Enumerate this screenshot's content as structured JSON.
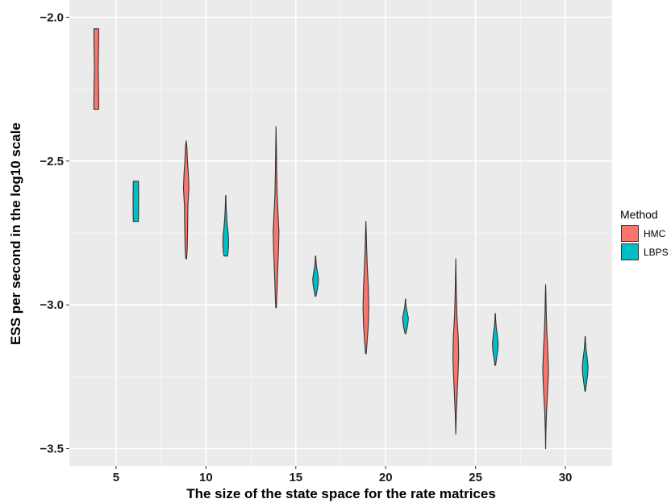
{
  "chart_data": {
    "type": "violin",
    "xlabel": "The size of the state space for the rate matrices",
    "ylabel": "ESS per second in the log10 scale",
    "xlim": [
      2.4,
      32.6
    ],
    "ylim": [
      -3.56,
      -1.94
    ],
    "x_ticks": [
      5,
      10,
      15,
      20,
      25,
      30
    ],
    "y_ticks": [
      -3.5,
      -3.0,
      -2.5,
      -2.0
    ],
    "y_tick_labels": [
      "−3.5",
      "−3.0",
      "−2.5",
      "−2.0"
    ],
    "grid": true,
    "legend_position": "right",
    "legend": {
      "title": "Method",
      "items": [
        {
          "label": "HMC",
          "color": "#F8766D"
        },
        {
          "label": "LBPS",
          "color": "#00BFC4"
        }
      ]
    },
    "series": [
      {
        "name": "HMC",
        "color": "#F8766D",
        "violins": [
          {
            "x": 3.9,
            "ymin": -2.32,
            "ymax": -2.04,
            "profile": [
              [
                0,
                0.82
              ],
              [
                0.04,
                0.86
              ],
              [
                0.3,
                0.78
              ],
              [
                0.5,
                0.65
              ],
              [
                0.7,
                0.75
              ],
              [
                0.96,
                0.84
              ],
              [
                1,
                0.8
              ]
            ]
          },
          {
            "x": 8.9,
            "ymin": -2.84,
            "ymax": -2.43,
            "profile": [
              [
                0,
                0.15
              ],
              [
                0.08,
                0.35
              ],
              [
                0.25,
                0.5
              ],
              [
                0.45,
                0.6
              ],
              [
                0.6,
                0.95
              ],
              [
                0.72,
                0.75
              ],
              [
                0.85,
                0.4
              ],
              [
                0.95,
                0.25
              ],
              [
                1,
                0
              ]
            ]
          },
          {
            "x": 13.9,
            "ymin": -3.01,
            "ymax": -2.38,
            "profile": [
              [
                0,
                0.1
              ],
              [
                0.08,
                0.3
              ],
              [
                0.2,
                0.55
              ],
              [
                0.32,
                0.85
              ],
              [
                0.42,
                1
              ],
              [
                0.52,
                0.7
              ],
              [
                0.62,
                0.4
              ],
              [
                0.75,
                0.22
              ],
              [
                0.88,
                0.12
              ],
              [
                1,
                0
              ]
            ]
          },
          {
            "x": 18.9,
            "ymin": -3.17,
            "ymax": -2.71,
            "profile": [
              [
                0,
                0.1
              ],
              [
                0.1,
                0.45
              ],
              [
                0.22,
                0.85
              ],
              [
                0.35,
                1
              ],
              [
                0.5,
                0.85
              ],
              [
                0.65,
                0.5
              ],
              [
                0.8,
                0.25
              ],
              [
                0.92,
                0.12
              ],
              [
                1,
                0
              ]
            ]
          },
          {
            "x": 23.9,
            "ymin": -3.45,
            "ymax": -2.84,
            "profile": [
              [
                0,
                0
              ],
              [
                0.1,
                0.15
              ],
              [
                0.22,
                0.45
              ],
              [
                0.35,
                0.8
              ],
              [
                0.45,
                1
              ],
              [
                0.55,
                0.85
              ],
              [
                0.68,
                0.4
              ],
              [
                0.82,
                0.18
              ],
              [
                0.92,
                0.08
              ],
              [
                1,
                0
              ]
            ]
          },
          {
            "x": 28.9,
            "ymin": -3.5,
            "ymax": -2.93,
            "profile": [
              [
                0,
                0
              ],
              [
                0.1,
                0.1
              ],
              [
                0.22,
                0.3
              ],
              [
                0.35,
                0.7
              ],
              [
                0.48,
                1
              ],
              [
                0.6,
                0.75
              ],
              [
                0.72,
                0.4
              ],
              [
                0.85,
                0.18
              ],
              [
                0.95,
                0.08
              ],
              [
                1,
                0
              ]
            ]
          }
        ]
      },
      {
        "name": "LBPS",
        "color": "#00BFC4",
        "violins": [
          {
            "x": 6.1,
            "ymin": -2.71,
            "ymax": -2.57,
            "profile": [
              [
                0,
                0.88
              ],
              [
                0.05,
                0.9
              ],
              [
                0.3,
                0.96
              ],
              [
                0.5,
                0.94
              ],
              [
                0.7,
                0.96
              ],
              [
                0.95,
                0.92
              ],
              [
                1,
                0.9
              ]
            ]
          },
          {
            "x": 11.1,
            "ymin": -2.83,
            "ymax": -2.62,
            "profile": [
              [
                0,
                0.6
              ],
              [
                0.05,
                0.8
              ],
              [
                0.2,
                1
              ],
              [
                0.35,
                0.9
              ],
              [
                0.5,
                0.55
              ],
              [
                0.62,
                0.35
              ],
              [
                0.75,
                0.2
              ],
              [
                0.88,
                0.1
              ],
              [
                1,
                0.05
              ]
            ]
          },
          {
            "x": 16.1,
            "ymin": -2.97,
            "ymax": -2.83,
            "profile": [
              [
                0,
                0.12
              ],
              [
                0.12,
                0.45
              ],
              [
                0.28,
                0.85
              ],
              [
                0.42,
                1
              ],
              [
                0.58,
                0.7
              ],
              [
                0.72,
                0.35
              ],
              [
                0.86,
                0.15
              ],
              [
                1,
                0.05
              ]
            ]
          },
          {
            "x": 21.1,
            "ymin": -3.1,
            "ymax": -2.98,
            "profile": [
              [
                0,
                0.12
              ],
              [
                0.12,
                0.45
              ],
              [
                0.3,
                0.85
              ],
              [
                0.45,
                1
              ],
              [
                0.6,
                0.65
              ],
              [
                0.75,
                0.3
              ],
              [
                0.88,
                0.12
              ],
              [
                1,
                0.04
              ]
            ]
          },
          {
            "x": 26.1,
            "ymin": -3.21,
            "ymax": -3.03,
            "profile": [
              [
                0,
                0.1
              ],
              [
                0.12,
                0.4
              ],
              [
                0.28,
                0.85
              ],
              [
                0.42,
                1
              ],
              [
                0.58,
                0.7
              ],
              [
                0.74,
                0.32
              ],
              [
                0.88,
                0.12
              ],
              [
                1,
                0.04
              ]
            ]
          },
          {
            "x": 31.1,
            "ymin": -3.3,
            "ymax": -3.11,
            "profile": [
              [
                0,
                0.1
              ],
              [
                0.12,
                0.4
              ],
              [
                0.3,
                0.85
              ],
              [
                0.45,
                1
              ],
              [
                0.6,
                0.72
              ],
              [
                0.76,
                0.32
              ],
              [
                0.9,
                0.12
              ],
              [
                1,
                0.04
              ]
            ]
          }
        ]
      }
    ]
  }
}
